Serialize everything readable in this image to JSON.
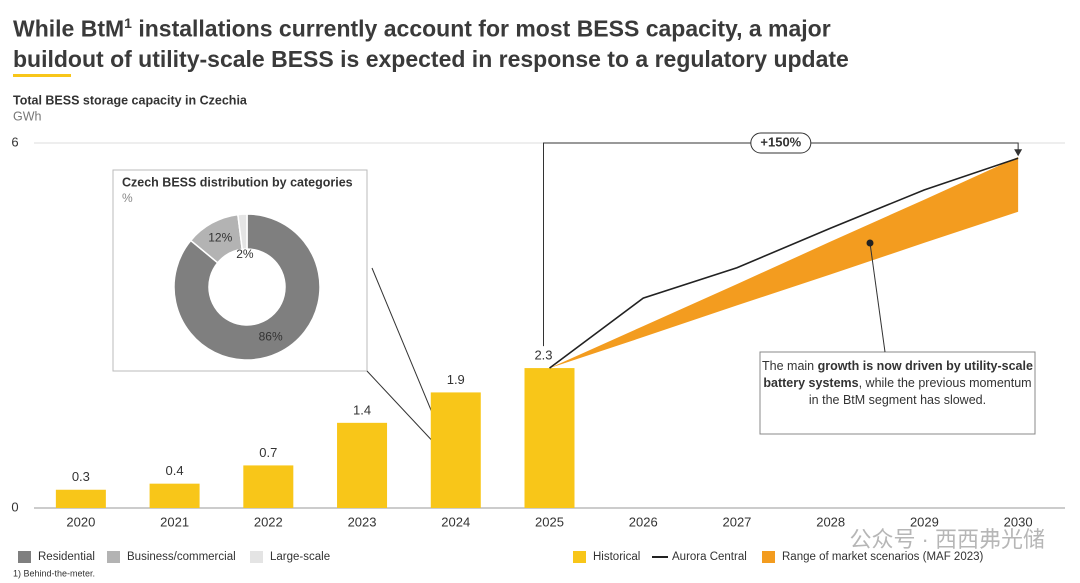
{
  "chart_data": [
    {
      "type": "bar",
      "title": [
        "While BtM",
        "1",
        " installations currently account for most BESS capacity, a major buildout of utility-scale BESS is expected in response to a regulatory update"
      ],
      "subtitle": "Total BESS storage capacity in Czechia",
      "y_label": "GWh",
      "categories": [
        "2020",
        "2021",
        "2022",
        "2023",
        "2024",
        "2025",
        "2026",
        "2027",
        "2028",
        "2029",
        "2030"
      ],
      "series": [
        {
          "name": "Historical",
          "type": "bar",
          "color": "#f8c619",
          "values": [
            0.3,
            0.4,
            0.7,
            1.4,
            1.9,
            2.3,
            null,
            null,
            null,
            null,
            null
          ]
        },
        {
          "name": "Aurora Central",
          "type": "line",
          "color": "#222222",
          "values": [
            null,
            null,
            null,
            null,
            null,
            2.3,
            3.45,
            3.95,
            4.6,
            5.23,
            5.75
          ]
        },
        {
          "name": "Range of market scenarios (MAF 2023)",
          "type": "range",
          "color": "#f39c1f",
          "low": [
            null,
            null,
            null,
            null,
            null,
            2.3,
            2.81,
            3.33,
            3.84,
            4.36,
            4.87
          ],
          "high": [
            null,
            null,
            null,
            null,
            null,
            2.3,
            2.99,
            3.68,
            4.38,
            5.07,
            5.77
          ]
        }
      ],
      "ylim": [
        0,
        6
      ],
      "yticks": [
        0,
        6
      ],
      "grid": true,
      "annotations": [
        "+150%"
      ],
      "callout": [
        {
          "text": "The main ",
          "bold": false
        },
        {
          "text": "growth is now driven by utility-scale battery systems",
          "bold": true
        },
        {
          "text": ", while the previous momentum in the BtM segment has slowed.",
          "bold": false
        }
      ],
      "footnote": "1) Behind-the-meter."
    },
    {
      "type": "pie",
      "title": "Czech BESS distribution by categories",
      "subtitle": "%",
      "categories": [
        "Residential",
        "Business/commercial",
        "Large-scale"
      ],
      "values": [
        86,
        12,
        2
      ],
      "value_labels": [
        "86%",
        "12%",
        "2%"
      ],
      "colors": [
        "#7f7f7f",
        "#b3b3b3",
        "#e4e4e4"
      ]
    }
  ],
  "watermark": "公众号 · 西西弗光储"
}
